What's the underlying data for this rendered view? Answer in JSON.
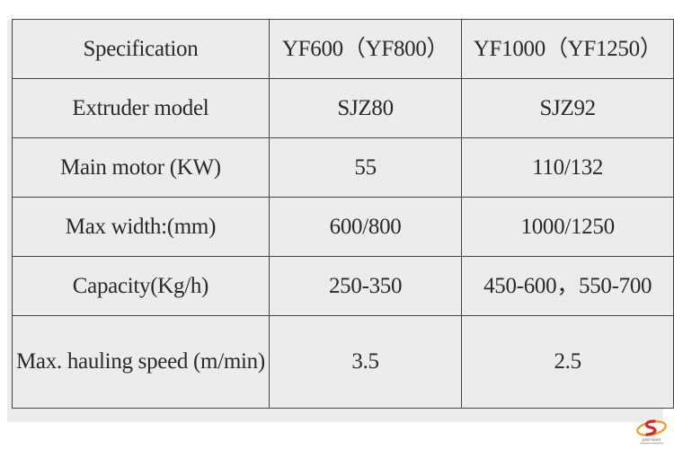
{
  "table": {
    "header": [
      "Specification",
      "YF600（YF800）",
      "YF1000（YF1250）"
    ],
    "rows": [
      [
        "Extruder model",
        "SJZ80",
        "SJZ92"
      ],
      [
        "Main motor (KW)",
        "55",
        "110/132"
      ],
      [
        "Max width:(mm)",
        "600/800",
        "1000/1250"
      ],
      [
        "Capacity(Kg/h)",
        "250-350",
        "450-600，550-700"
      ],
      [
        "Max. hauling speed (m/min)",
        "3.5",
        "2.5"
      ]
    ]
  },
  "logo": {
    "text": "precision",
    "colors": {
      "orange": "#f29a1f",
      "red": "#d8262b",
      "brown": "#7a4a2a"
    }
  }
}
